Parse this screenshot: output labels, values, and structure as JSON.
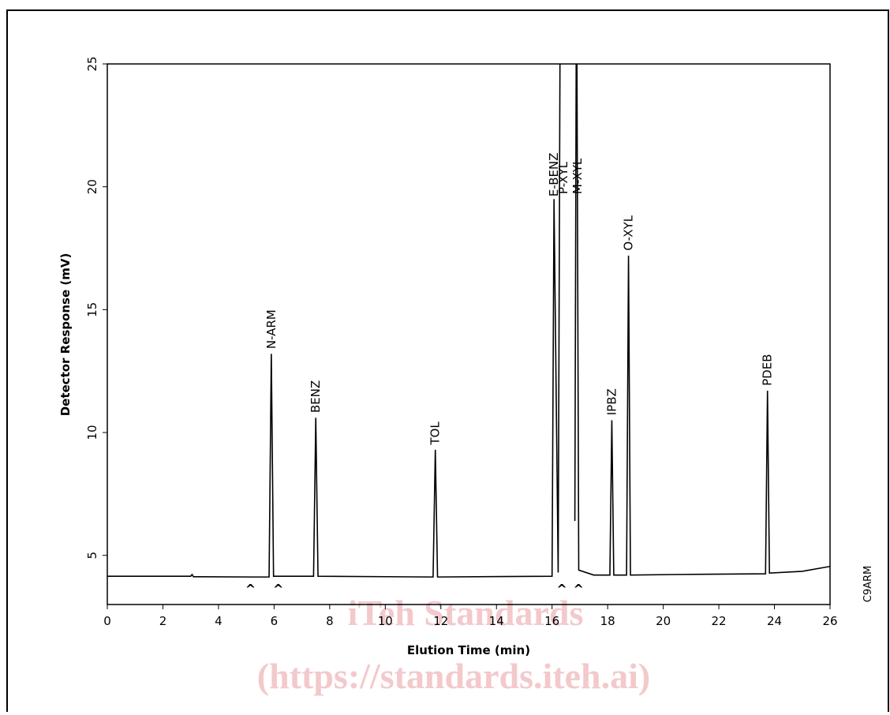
{
  "chart_data": {
    "type": "line",
    "x_label": "Elution Time (min)",
    "y_label": "Detector Response (mV)",
    "xlim": [
      0,
      26
    ],
    "xticks": [
      0,
      2,
      4,
      6,
      8,
      10,
      12,
      14,
      16,
      18,
      20,
      22,
      24,
      26
    ],
    "ylim": [
      3,
      25
    ],
    "yticks": [
      5,
      10,
      15,
      20,
      25
    ],
    "color": "#000000",
    "trace": {
      "x": [
        0,
        3.0,
        3.05,
        3.1,
        5.2,
        5.82,
        5.9,
        5.98,
        7.42,
        7.5,
        7.58,
        11.72,
        11.8,
        11.88,
        16.0,
        16.07,
        16.22,
        16.3,
        16.5,
        16.82,
        16.88,
        16.96,
        17.5,
        18.08,
        18.15,
        18.22,
        18.68,
        18.75,
        18.82,
        20.4,
        23.68,
        23.75,
        23.82,
        25,
        26
      ],
      "y": [
        4.15,
        4.15,
        4.22,
        4.13,
        4.12,
        4.12,
        13.2,
        4.15,
        4.15,
        10.6,
        4.15,
        4.12,
        9.3,
        4.12,
        4.15,
        19.5,
        4.3,
        30,
        null,
        6.4,
        30,
        4.4,
        4.2,
        4.2,
        10.5,
        4.2,
        4.2,
        17.2,
        4.2,
        4.22,
        4.25,
        11.7,
        4.28,
        4.35,
        4.55
      ]
    },
    "annotations": [
      {
        "text": "N-ARM",
        "x": 5.9,
        "y": 13.4
      },
      {
        "text": "BENZ",
        "x": 7.5,
        "y": 10.8
      },
      {
        "text": "TOL",
        "x": 11.8,
        "y": 9.5
      },
      {
        "text": "E-BENZ",
        "x": 16.07,
        "y": 19.6
      },
      {
        "text": "P-XYL",
        "x": 16.4,
        "y": 19.7
      },
      {
        "text": "M-XYL",
        "x": 16.92,
        "y": 19.7
      },
      {
        "text": "IPBZ",
        "x": 18.15,
        "y": 10.7
      },
      {
        "text": "O-XYL",
        "x": 18.75,
        "y": 17.4
      },
      {
        "text": "PDEB",
        "x": 23.75,
        "y": 11.9
      }
    ],
    "markers": {
      "label": "^",
      "x": [
        5.15,
        6.15,
        16.35,
        16.95
      ]
    },
    "side_label": "C9ARM",
    "watermark": [
      "iTeh Standards",
      "(https://standards.iteh.ai)"
    ]
  }
}
